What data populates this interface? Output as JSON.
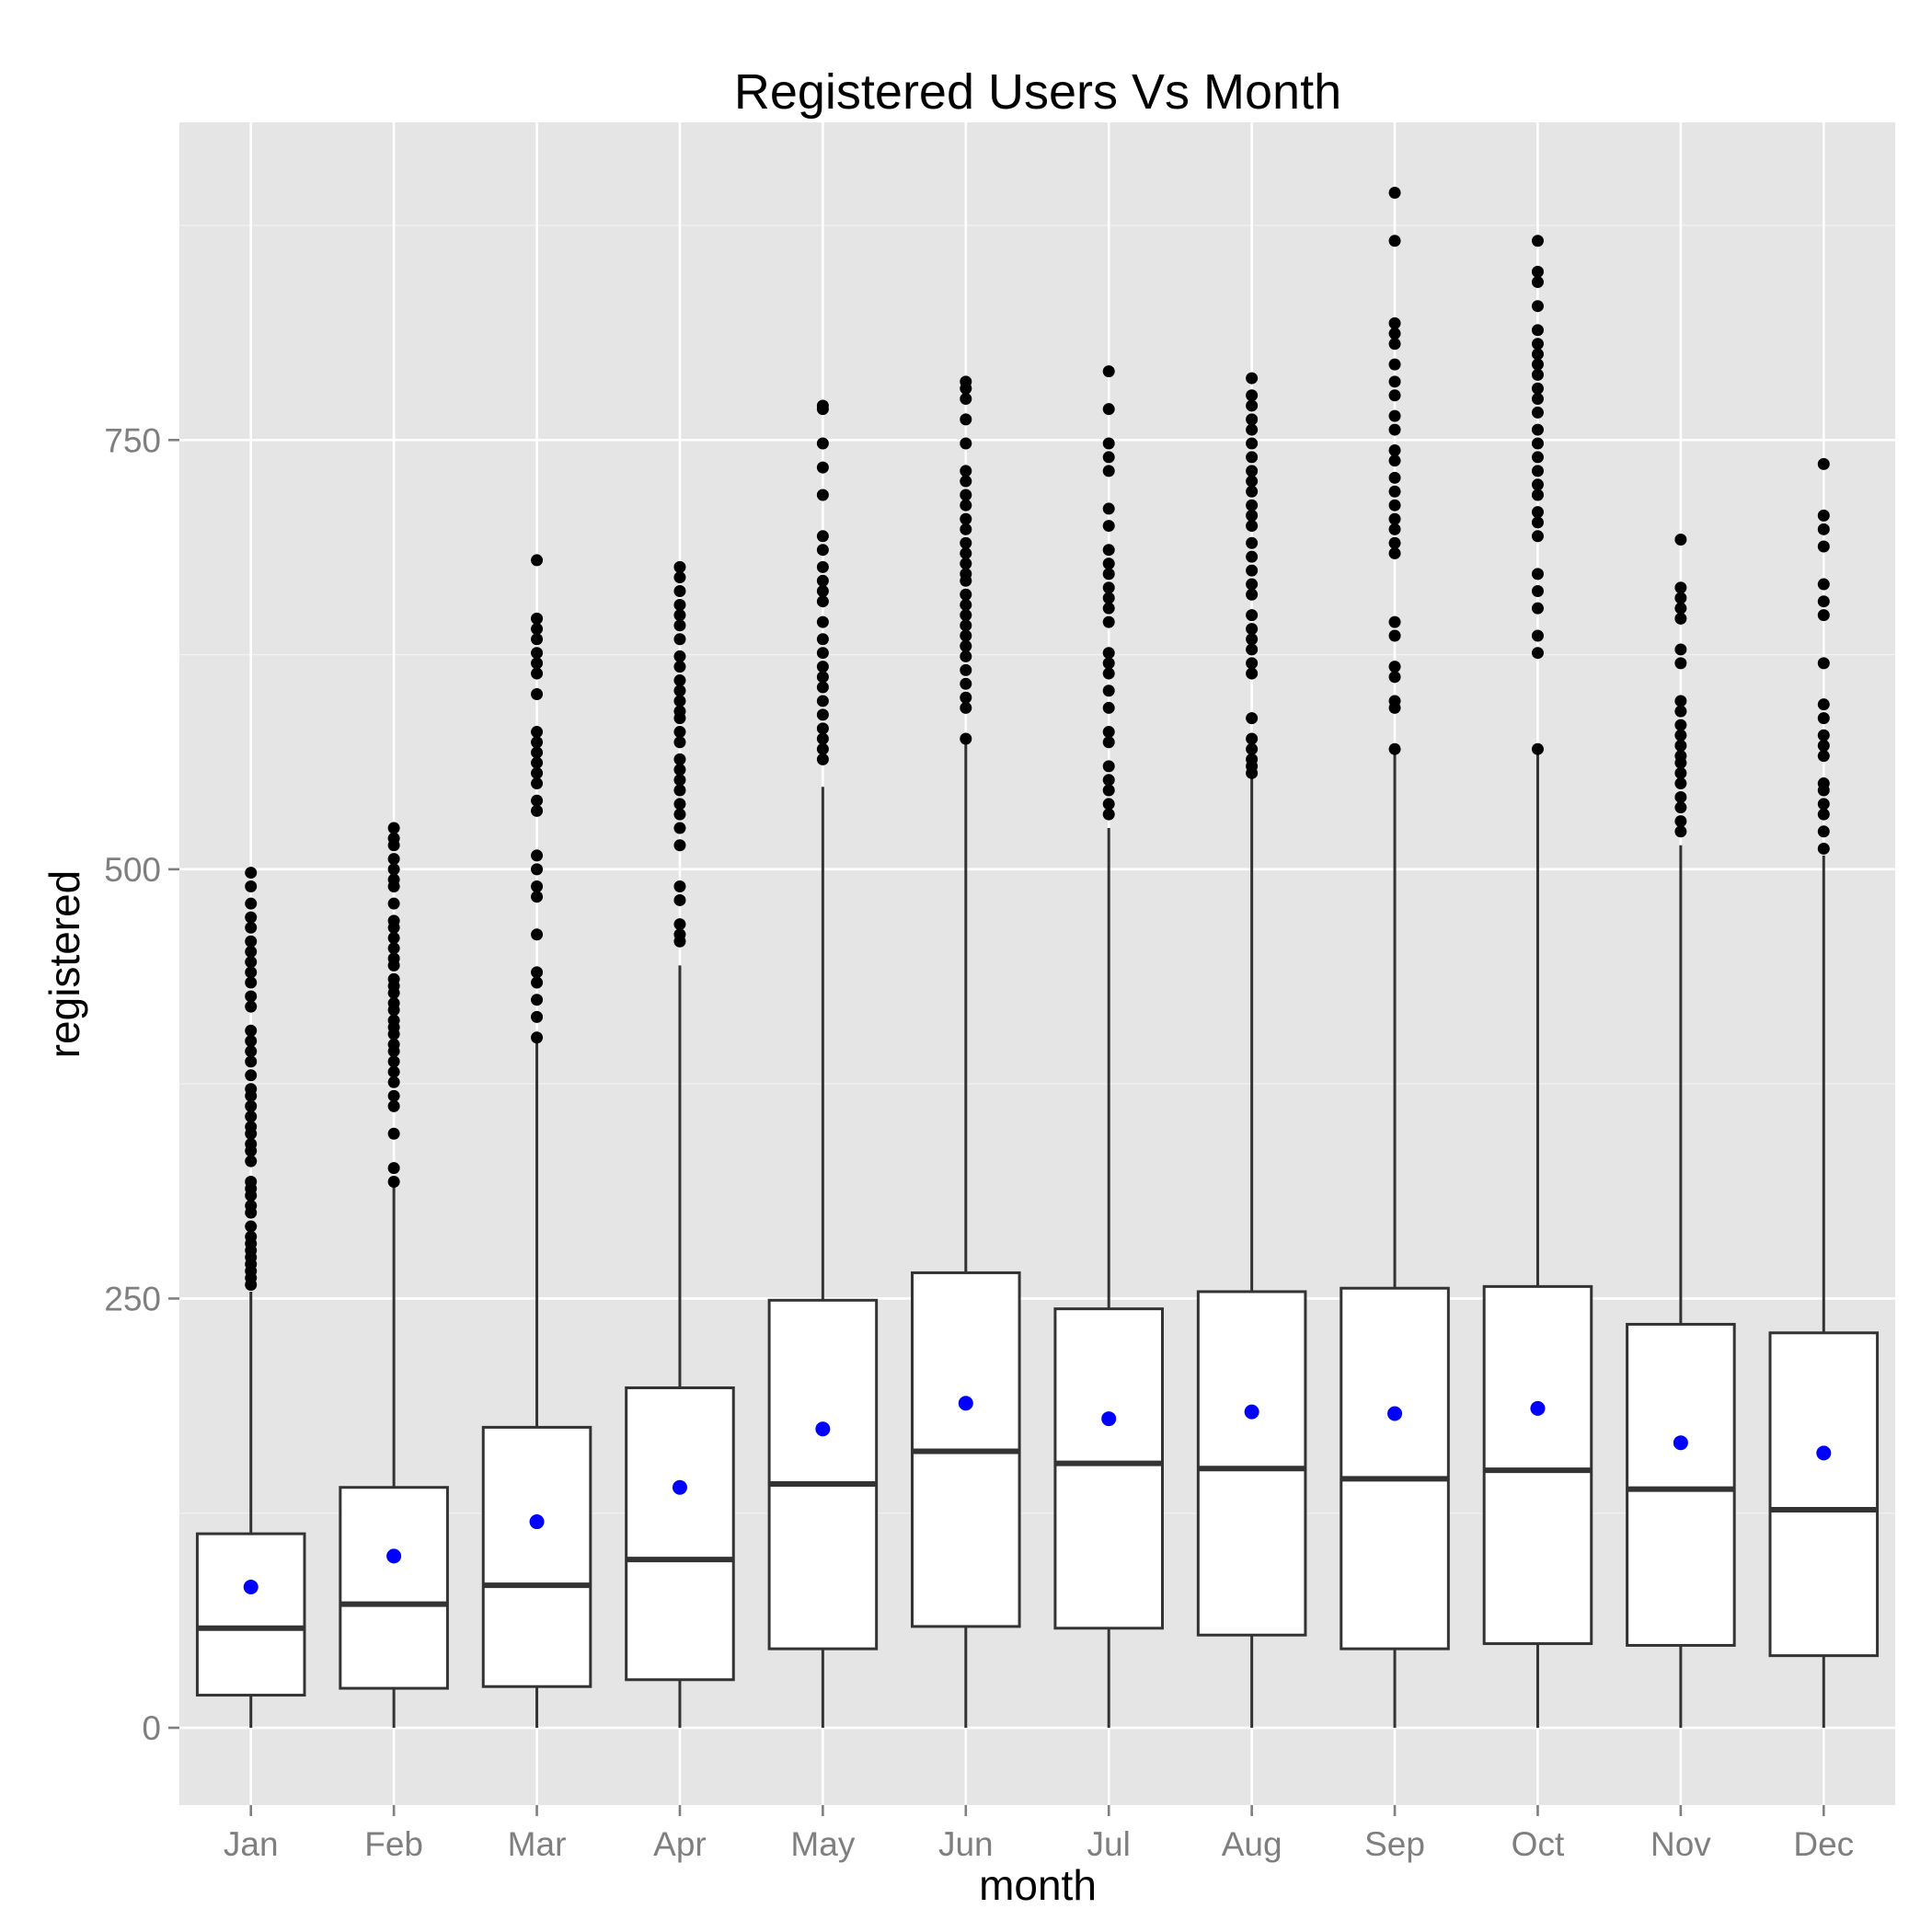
{
  "chart_data": {
    "type": "box",
    "title": "Registered Users Vs Month",
    "xlabel": "month",
    "ylabel": "registered",
    "ylim": [
      -45,
      935
    ],
    "yticks": [
      0,
      250,
      500,
      750
    ],
    "y_tick_labels": [
      "0",
      "250",
      "500",
      "750"
    ],
    "grid": true,
    "categories": [
      "Jan",
      "Feb",
      "Mar",
      "Apr",
      "May",
      "Jun",
      "Jul",
      "Aug",
      "Sep",
      "Oct",
      "Nov",
      "Dec"
    ],
    "boxes": [
      {
        "label": "Jan",
        "min": 0,
        "q1": 19,
        "median": 58,
        "q3": 113,
        "max": 254,
        "mean": 82,
        "outliers": [
          258,
          262,
          266,
          270,
          274,
          278,
          282,
          286,
          292,
          300,
          304,
          310,
          314,
          318,
          330,
          336,
          340,
          346,
          350,
          356,
          362,
          368,
          372,
          380,
          388,
          394,
          400,
          406,
          420,
          426,
          434,
          440,
          446,
          452,
          458,
          466,
          472,
          480,
          490,
          498
        ]
      },
      {
        "label": "Feb",
        "min": 0,
        "q1": 23,
        "median": 72,
        "q3": 140,
        "max": 316,
        "mean": 100,
        "outliers": [
          318,
          326,
          346,
          362,
          368,
          376,
          382,
          388,
          394,
          398,
          404,
          408,
          412,
          418,
          422,
          428,
          432,
          436,
          444,
          448,
          454,
          460,
          466,
          470,
          480,
          490,
          494,
          500,
          506,
          514,
          518,
          524
        ]
      },
      {
        "label": "Mar",
        "min": 0,
        "q1": 24,
        "median": 83,
        "q3": 175,
        "max": 400,
        "mean": 120,
        "outliers": [
          402,
          414,
          424,
          434,
          440,
          462,
          484,
          490,
          500,
          508,
          534,
          540,
          550,
          556,
          562,
          568,
          574,
          580,
          602,
          614,
          620,
          626,
          634,
          640,
          646,
          680
        ]
      },
      {
        "label": "Apr",
        "min": 0,
        "q1": 28,
        "median": 98,
        "q3": 198,
        "max": 444,
        "mean": 140,
        "outliers": [
          458,
          462,
          468,
          482,
          490,
          514,
          524,
          532,
          538,
          546,
          552,
          558,
          564,
          574,
          580,
          588,
          592,
          598,
          604,
          610,
          618,
          624,
          634,
          642,
          648,
          654,
          662,
          670,
          676
        ]
      },
      {
        "label": "May",
        "min": 0,
        "q1": 46,
        "median": 142,
        "q3": 249,
        "max": 548,
        "mean": 174,
        "outliers": [
          564,
          570,
          576,
          582,
          590,
          598,
          606,
          612,
          618,
          626,
          634,
          644,
          656,
          662,
          668,
          676,
          686,
          694,
          718,
          734,
          748,
          768,
          770
        ]
      },
      {
        "label": "Jun",
        "min": 0,
        "q1": 59,
        "median": 161,
        "q3": 265,
        "max": 574,
        "mean": 189,
        "outliers": [
          576,
          594,
          600,
          608,
          616,
          624,
          630,
          636,
          642,
          648,
          654,
          660,
          668,
          672,
          678,
          684,
          690,
          698,
          704,
          712,
          718,
          726,
          732,
          748,
          762,
          774,
          780,
          784
        ]
      },
      {
        "label": "Jul",
        "min": 0,
        "q1": 58,
        "median": 154,
        "q3": 244,
        "max": 524,
        "mean": 180,
        "outliers": [
          532,
          538,
          546,
          552,
          560,
          574,
          580,
          594,
          604,
          614,
          620,
          626,
          644,
          652,
          658,
          664,
          672,
          678,
          686,
          700,
          710,
          732,
          740,
          748,
          768,
          790
        ]
      },
      {
        "label": "Aug",
        "min": 0,
        "q1": 54,
        "median": 151,
        "q3": 254,
        "max": 554,
        "mean": 184,
        "outliers": [
          556,
          560,
          564,
          570,
          576,
          588,
          614,
          620,
          628,
          634,
          640,
          648,
          660,
          666,
          674,
          682,
          690,
          700,
          706,
          712,
          720,
          726,
          732,
          740,
          748,
          756,
          762,
          770,
          776,
          786
        ]
      },
      {
        "label": "Sep",
        "min": 0,
        "q1": 46,
        "median": 145,
        "q3": 256,
        "max": 568,
        "mean": 183,
        "outliers": [
          570,
          594,
          598,
          612,
          618,
          636,
          644,
          684,
          690,
          698,
          704,
          712,
          720,
          728,
          738,
          744,
          756,
          764,
          776,
          784,
          794,
          806,
          812,
          818,
          866,
          894
        ]
      },
      {
        "label": "Oct",
        "min": 0,
        "q1": 49,
        "median": 150,
        "q3": 257,
        "max": 568,
        "mean": 186,
        "outliers": [
          570,
          626,
          636,
          652,
          662,
          672,
          694,
          702,
          708,
          718,
          724,
          732,
          740,
          748,
          756,
          766,
          774,
          780,
          788,
          794,
          800,
          806,
          814,
          828,
          842,
          848,
          866
        ]
      },
      {
        "label": "Nov",
        "min": 0,
        "q1": 48,
        "median": 139,
        "q3": 235,
        "max": 514,
        "mean": 166,
        "outliers": [
          522,
          528,
          536,
          542,
          550,
          556,
          562,
          566,
          572,
          578,
          584,
          592,
          598,
          620,
          628,
          646,
          652,
          658,
          664,
          692
        ]
      },
      {
        "label": "Dec",
        "min": 0,
        "q1": 42,
        "median": 127,
        "q3": 230,
        "max": 508,
        "mean": 160,
        "outliers": [
          512,
          522,
          532,
          538,
          546,
          550,
          566,
          572,
          578,
          588,
          596,
          620,
          648,
          656,
          666,
          688,
          698,
          706,
          736
        ]
      }
    ],
    "colors": {
      "panel_background": "#e5e5e5",
      "grid_major": "#ffffff",
      "grid_minor": "#f2f2f2",
      "box_fill": "#ffffff",
      "box_stroke": "#333333",
      "outlier": "#000000",
      "mean_point": "#0000ff"
    }
  }
}
